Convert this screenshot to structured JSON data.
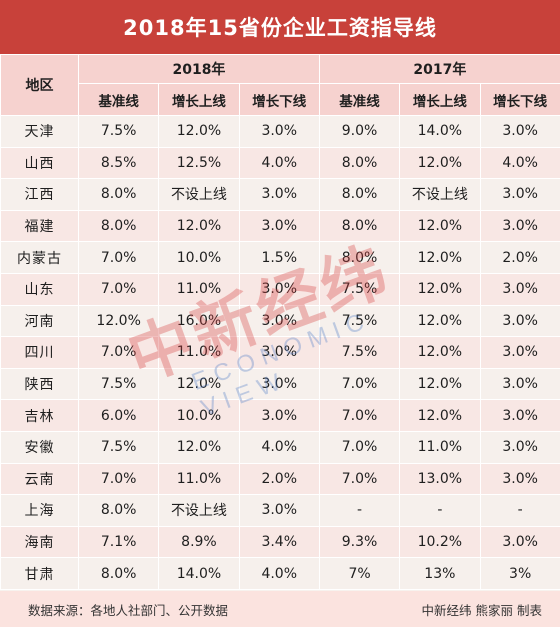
{
  "title": "2018年15省份企业工资指导线",
  "header": {
    "region": "地区",
    "year_2018": "2018年",
    "year_2017": "2017年",
    "cols": [
      "基准线",
      "增长上线",
      "增长下线",
      "基准线",
      "增长上线",
      "增长下线"
    ]
  },
  "rows": [
    {
      "region": "天津",
      "v": [
        "7.5%",
        "12.0%",
        "3.0%",
        "9.0%",
        "14.0%",
        "3.0%"
      ]
    },
    {
      "region": "山西",
      "v": [
        "8.5%",
        "12.5%",
        "4.0%",
        "8.0%",
        "12.0%",
        "4.0%"
      ]
    },
    {
      "region": "江西",
      "v": [
        "8.0%",
        "不设上线",
        "3.0%",
        "8.0%",
        "不设上线",
        "3.0%"
      ]
    },
    {
      "region": "福建",
      "v": [
        "8.0%",
        "12.0%",
        "3.0%",
        "8.0%",
        "12.0%",
        "3.0%"
      ]
    },
    {
      "region": "内蒙古",
      "v": [
        "7.0%",
        "10.0%",
        "1.5%",
        "8.0%",
        "12.0%",
        "2.0%"
      ]
    },
    {
      "region": "山东",
      "v": [
        "7.0%",
        "11.0%",
        "3.0%",
        "7.5%",
        "12.0%",
        "3.0%"
      ]
    },
    {
      "region": "河南",
      "v": [
        "12.0%",
        "16.0%",
        "3.0%",
        "7.5%",
        "12.0%",
        "3.0%"
      ]
    },
    {
      "region": "四川",
      "v": [
        "7.0%",
        "11.0%",
        "3.0%",
        "7.5%",
        "12.0%",
        "3.0%"
      ]
    },
    {
      "region": "陕西",
      "v": [
        "7.5%",
        "12.0%",
        "3.0%",
        "7.0%",
        "12.0%",
        "3.0%"
      ]
    },
    {
      "region": "吉林",
      "v": [
        "6.0%",
        "10.0%",
        "3.0%",
        "7.0%",
        "12.0%",
        "3.0%"
      ]
    },
    {
      "region": "安徽",
      "v": [
        "7.5%",
        "12.0%",
        "4.0%",
        "7.0%",
        "11.0%",
        "3.0%"
      ]
    },
    {
      "region": "云南",
      "v": [
        "7.0%",
        "11.0%",
        "2.0%",
        "7.0%",
        "13.0%",
        "3.0%"
      ]
    },
    {
      "region": "上海",
      "v": [
        "8.0%",
        "不设上线",
        "3.0%",
        "-",
        "-",
        "-"
      ]
    },
    {
      "region": "海南",
      "v": [
        "7.1%",
        "8.9%",
        "3.4%",
        "9.3%",
        "10.2%",
        "3.0%"
      ]
    },
    {
      "region": "甘肃",
      "v": [
        "8.0%",
        "14.0%",
        "4.0%",
        "7%",
        "13%",
        "3%"
      ]
    }
  ],
  "footer": {
    "source": "数据来源：各地人社部门、公开数据",
    "credit": "中新经纬 熊家丽 制表"
  },
  "watermark": {
    "text_cn": "中新经纬",
    "text_en": "ECONOMIC VIEW"
  },
  "colors": {
    "title_bg": "#c8413a",
    "header_bg": "#f6d2cf",
    "row_bg": "#f6f0ec",
    "row_alt_bg": "#f8e7e4"
  }
}
